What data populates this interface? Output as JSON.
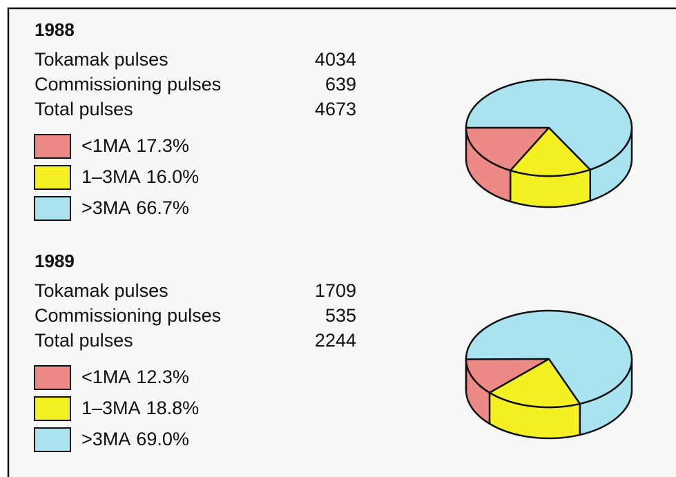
{
  "chart_data": [
    {
      "type": "pie",
      "title": "1988",
      "stats": [
        {
          "label": "Tokamak pulses",
          "value": 4034
        },
        {
          "label": "Commissioning pulses",
          "value": 639
        },
        {
          "label": "Total pulses",
          "value": 4673
        }
      ],
      "categories": [
        "<1MA",
        "1–3MA",
        ">3MA"
      ],
      "values": [
        17.3,
        16.0,
        66.7
      ],
      "value_labels": [
        "17.3%",
        "16.0%",
        "66.7%"
      ],
      "colors": [
        "#ee8a86",
        "#f5f022",
        "#a9e3f0"
      ]
    },
    {
      "type": "pie",
      "title": "1989",
      "stats": [
        {
          "label": "Tokamak pulses",
          "value": 1709
        },
        {
          "label": "Commissioning pulses",
          "value": 535
        },
        {
          "label": "Total pulses",
          "value": 2244
        }
      ],
      "categories": [
        "<1MA",
        "1–3MA",
        ">3MA"
      ],
      "values": [
        12.3,
        18.8,
        69.0
      ],
      "value_labels": [
        "12.3%",
        "18.8%",
        "69.0%"
      ],
      "colors": [
        "#ee8a86",
        "#f5f022",
        "#a9e3f0"
      ]
    }
  ]
}
